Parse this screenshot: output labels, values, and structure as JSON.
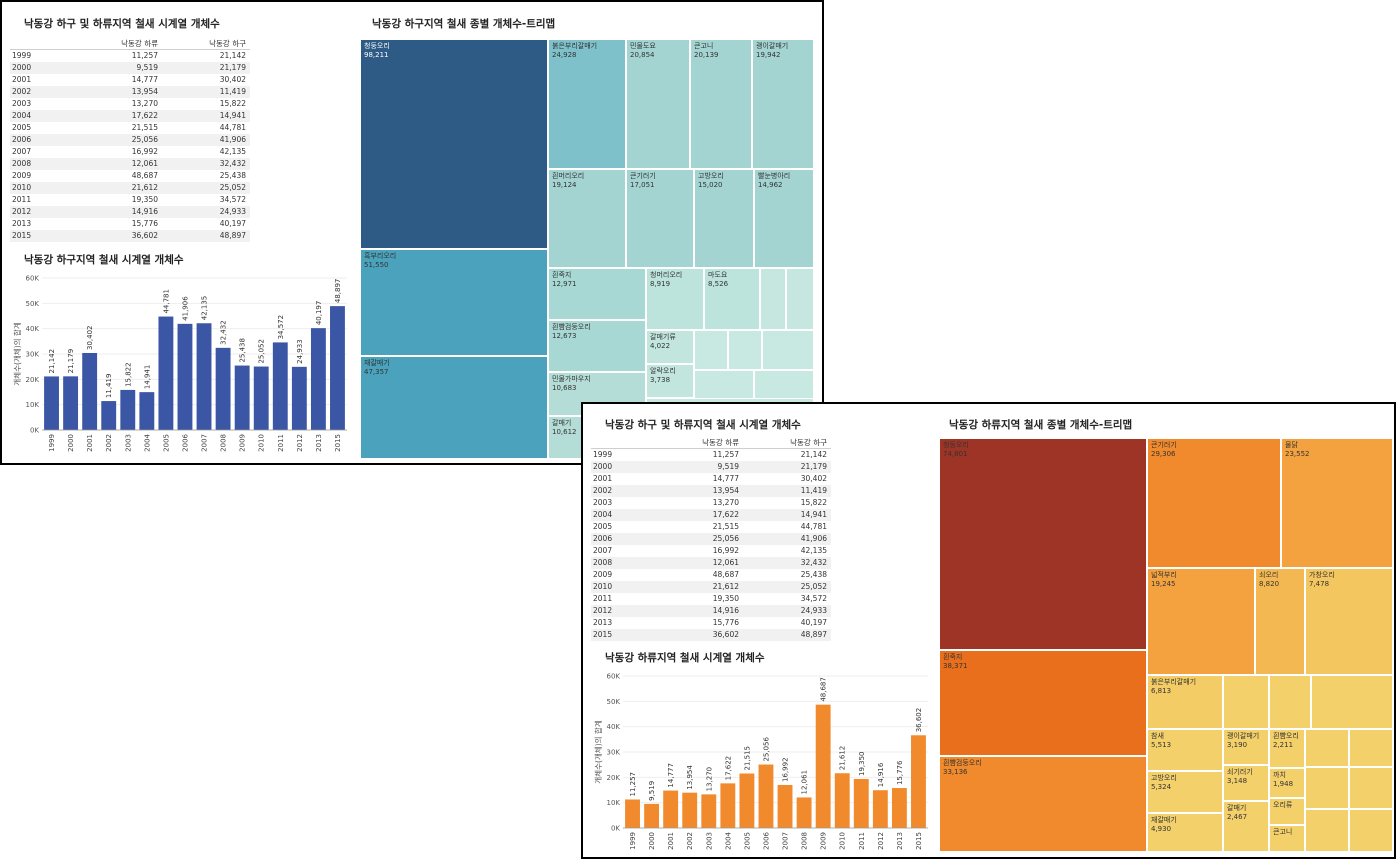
{
  "dashboards": [
    {
      "table_title": "낙동강 하구 및 하류지역 철새 시계열 개체수",
      "col_headers": [
        "낙동강 하류",
        "낙동강 하구"
      ],
      "rows": [
        {
          "year": "1999",
          "a": "11,257",
          "b": "21,142"
        },
        {
          "year": "2000",
          "a": "9,519",
          "b": "21,179"
        },
        {
          "year": "2001",
          "a": "14,777",
          "b": "30,402"
        },
        {
          "year": "2002",
          "a": "13,954",
          "b": "11,419"
        },
        {
          "year": "2003",
          "a": "13,270",
          "b": "15,822"
        },
        {
          "year": "2004",
          "a": "17,622",
          "b": "14,941"
        },
        {
          "year": "2005",
          "a": "21,515",
          "b": "44,781"
        },
        {
          "year": "2006",
          "a": "25,056",
          "b": "41,906"
        },
        {
          "year": "2007",
          "a": "16,992",
          "b": "42,135"
        },
        {
          "year": "2008",
          "a": "12,061",
          "b": "32,432"
        },
        {
          "year": "2009",
          "a": "48,687",
          "b": "25,438"
        },
        {
          "year": "2010",
          "a": "21,612",
          "b": "25,052"
        },
        {
          "year": "2011",
          "a": "19,350",
          "b": "34,572"
        },
        {
          "year": "2012",
          "a": "14,916",
          "b": "24,933"
        },
        {
          "year": "2013",
          "a": "15,776",
          "b": "40,197"
        },
        {
          "year": "2015",
          "a": "36,602",
          "b": "48,897"
        }
      ],
      "bar_title": "낙동강 하구지역 철새 시계열 개체수",
      "treemap_title": "낙동강 하구지역 철새 종별 개체수-트리맵",
      "treemap_cells": [
        {
          "name": "청둥오리",
          "value": "98,211",
          "color": "#2d5b86",
          "dark": true
        },
        {
          "name": "흑부리오리",
          "value": "51,550",
          "color": "#4aa2bc",
          "dark": false
        },
        {
          "name": "재갈매기",
          "value": "47,357",
          "color": "#4aa2bc",
          "dark": false
        },
        {
          "name": "붉은부리갈매기",
          "value": "24,928",
          "color": "#7ec1ca",
          "dark": false
        },
        {
          "name": "민물도요",
          "value": "20,854",
          "color": "#a3d4d2",
          "dark": false
        },
        {
          "name": "큰고니",
          "value": "20,139",
          "color": "#a3d4d2",
          "dark": false
        },
        {
          "name": "괭이갈매기",
          "value": "19,942",
          "color": "#a3d4d2",
          "dark": false
        },
        {
          "name": "흰머리오리",
          "value": "19,124",
          "color": "#a3d4d2",
          "dark": false
        },
        {
          "name": "큰기러기",
          "value": "17,051",
          "color": "#a3d4d2",
          "dark": false
        },
        {
          "name": "고방오리",
          "value": "15,020",
          "color": "#a3d4d2",
          "dark": false
        },
        {
          "name": "빨눈병아리",
          "value": "14,962",
          "color": "#a3d4d2",
          "dark": false
        },
        {
          "name": "흰죽지",
          "value": "12,971",
          "color": "#a8d8d3",
          "dark": false
        },
        {
          "name": "흰뺨검둥오리",
          "value": "12,673",
          "color": "#a8d8d3",
          "dark": false
        },
        {
          "name": "민물가마우지",
          "value": "10,683",
          "color": "#b5ddd7",
          "dark": false
        },
        {
          "name": "갈매기",
          "value": "10,612",
          "color": "#b5ddd7",
          "dark": false
        },
        {
          "name": "청머리오리",
          "value": "8,919",
          "color": "#bce3dc",
          "dark": false
        },
        {
          "name": "마도요",
          "value": "8,526",
          "color": "#bce3dc",
          "dark": false
        },
        {
          "name": "갈매기류",
          "value": "4,022",
          "color": "#c2e6de",
          "dark": false
        },
        {
          "name": "알락오리",
          "value": "3,738",
          "color": "#c2e6de",
          "dark": false
        },
        {
          "name": "",
          "value": "",
          "color": "#c5e7df",
          "dark": false
        },
        {
          "name": "",
          "value": "",
          "color": "#c5e7df",
          "dark": false
        },
        {
          "name": "",
          "value": "",
          "color": "#c8e9e1",
          "dark": false
        },
        {
          "name": "",
          "value": "",
          "color": "#c8e9e1",
          "dark": false
        },
        {
          "name": "",
          "value": "",
          "color": "#c8e9e1",
          "dark": false
        },
        {
          "name": "",
          "value": "",
          "color": "#c8e9e1",
          "dark": false
        },
        {
          "name": "",
          "value": "",
          "color": "#c8e9e1",
          "dark": false
        },
        {
          "name": "",
          "value": "",
          "color": "#c8e9e1",
          "dark": false
        }
      ]
    },
    {
      "table_title": "낙동강 하구 및 하류지역 철새 시계열 개체수",
      "col_headers": [
        "낙동강 하류",
        "낙동강 하구"
      ],
      "rows": [
        {
          "year": "1999",
          "a": "11,257",
          "b": "21,142"
        },
        {
          "year": "2000",
          "a": "9,519",
          "b": "21,179"
        },
        {
          "year": "2001",
          "a": "14,777",
          "b": "30,402"
        },
        {
          "year": "2002",
          "a": "13,954",
          "b": "11,419"
        },
        {
          "year": "2003",
          "a": "13,270",
          "b": "15,822"
        },
        {
          "year": "2004",
          "a": "17,622",
          "b": "14,941"
        },
        {
          "year": "2005",
          "a": "21,515",
          "b": "44,781"
        },
        {
          "year": "2006",
          "a": "25,056",
          "b": "41,906"
        },
        {
          "year": "2007",
          "a": "16,992",
          "b": "42,135"
        },
        {
          "year": "2008",
          "a": "12,061",
          "b": "32,432"
        },
        {
          "year": "2009",
          "a": "48,687",
          "b": "25,438"
        },
        {
          "year": "2010",
          "a": "21,612",
          "b": "25,052"
        },
        {
          "year": "2011",
          "a": "19,350",
          "b": "34,572"
        },
        {
          "year": "2012",
          "a": "14,916",
          "b": "24,933"
        },
        {
          "year": "2013",
          "a": "15,776",
          "b": "40,197"
        },
        {
          "year": "2015",
          "a": "36,602",
          "b": "48,897"
        }
      ],
      "bar_title": "낙동강 하류지역 철새 시계열 개체수",
      "treemap_title": "낙동강 하류지역 철새 종별 개체수-트리맵",
      "treemap_cells": [
        {
          "name": "청둥오리",
          "value": "74,801",
          "color": "#9e3426",
          "dark": false
        },
        {
          "name": "흰죽지",
          "value": "38,371",
          "color": "#ea6f1c",
          "dark": false
        },
        {
          "name": "흰뺨검둥오리",
          "value": "33,136",
          "color": "#f08a2c",
          "dark": false
        },
        {
          "name": "큰기러기",
          "value": "29,306",
          "color": "#f08a2c",
          "dark": false
        },
        {
          "name": "물닭",
          "value": "23,552",
          "color": "#f4a240",
          "dark": false
        },
        {
          "name": "넓적부리",
          "value": "19,245",
          "color": "#f4a240",
          "dark": false
        },
        {
          "name": "쇠오리",
          "value": "8,820",
          "color": "#f4b852",
          "dark": false
        },
        {
          "name": "가창오리",
          "value": "7,478",
          "color": "#f3c660",
          "dark": false
        },
        {
          "name": "붉은부리갈매기",
          "value": "6,813",
          "color": "#f3cc65",
          "dark": false
        },
        {
          "name": "참새",
          "value": "5,513",
          "color": "#f3d06a",
          "dark": false
        },
        {
          "name": "고방오리",
          "value": "5,324",
          "color": "#f3d06a",
          "dark": false
        },
        {
          "name": "재갈매기",
          "value": "4,930",
          "color": "#f3d06a",
          "dark": false
        },
        {
          "name": "괭이갈매기",
          "value": "3,190",
          "color": "#f3d06a",
          "dark": false
        },
        {
          "name": "쇠기러기",
          "value": "3,148",
          "color": "#f3d06a",
          "dark": false
        },
        {
          "name": "갈매기",
          "value": "2,467",
          "color": "#f3d06a",
          "dark": false
        },
        {
          "name": "흰뺨오리",
          "value": "2,211",
          "color": "#f3d06a",
          "dark": false
        },
        {
          "name": "까치",
          "value": "1,948",
          "color": "#f3d06a",
          "dark": false
        },
        {
          "name": "오리류",
          "value": "",
          "color": "#f3d06a",
          "dark": false
        },
        {
          "name": "큰고니",
          "value": "",
          "color": "#f3d06a",
          "dark": false
        },
        {
          "name": "",
          "value": "",
          "color": "#f3d06a",
          "dark": false
        },
        {
          "name": "",
          "value": "",
          "color": "#f3d06a",
          "dark": false
        },
        {
          "name": "",
          "value": "",
          "color": "#f3d06a",
          "dark": false
        },
        {
          "name": "",
          "value": "",
          "color": "#f3d06a",
          "dark": false
        },
        {
          "name": "",
          "value": "",
          "color": "#f3d06a",
          "dark": false
        },
        {
          "name": "",
          "value": "",
          "color": "#f3d06a",
          "dark": false
        },
        {
          "name": "",
          "value": "",
          "color": "#f3d06a",
          "dark": false
        },
        {
          "name": "",
          "value": "",
          "color": "#f3d06a",
          "dark": false
        },
        {
          "name": "",
          "value": "",
          "color": "#f3d06a",
          "dark": false
        }
      ]
    }
  ],
  "chart_data": [
    {
      "type": "bar",
      "title": "낙동강 하구지역 철새 시계열 개체수",
      "xlabel": "",
      "ylabel": "개체수(개체)의 합계",
      "ylim": [
        0,
        60000
      ],
      "yticks": [
        "0K",
        "10K",
        "20K",
        "30K",
        "40K",
        "50K",
        "60K"
      ],
      "color": "#3a56a4",
      "categories": [
        "1999",
        "2000",
        "2001",
        "2002",
        "2003",
        "2004",
        "2005",
        "2006",
        "2007",
        "2008",
        "2009",
        "2010",
        "2011",
        "2012",
        "2013",
        "2015"
      ],
      "values": [
        21142,
        21179,
        30402,
        11419,
        15822,
        14941,
        44781,
        41906,
        42135,
        32432,
        25438,
        25052,
        34572,
        24933,
        40197,
        48897
      ],
      "labels": [
        "21,142",
        "21,179",
        "30,402",
        "11,419",
        "15,822",
        "14,941",
        "44,781",
        "41,906",
        "42,135",
        "32,432",
        "25,438",
        "25,052",
        "34,572",
        "24,933",
        "40,197",
        "48,897"
      ]
    },
    {
      "type": "bar",
      "title": "낙동강 하류지역 철새 시계열 개체수",
      "xlabel": "",
      "ylabel": "개체수(개체)의 합계",
      "ylim": [
        0,
        60000
      ],
      "yticks": [
        "0K",
        "10K",
        "20K",
        "30K",
        "40K",
        "50K",
        "60K"
      ],
      "color": "#f08a2c",
      "categories": [
        "1999",
        "2000",
        "2001",
        "2002",
        "2003",
        "2004",
        "2005",
        "2006",
        "2007",
        "2008",
        "2009",
        "2010",
        "2011",
        "2012",
        "2013",
        "2015"
      ],
      "values": [
        11257,
        9519,
        14777,
        13954,
        13270,
        17622,
        21515,
        25056,
        16992,
        12061,
        48687,
        21612,
        19350,
        14916,
        15776,
        36602
      ],
      "labels": [
        "11,257",
        "9,519",
        "14,777",
        "13,954",
        "13,270",
        "17,622",
        "21,515",
        "25,056",
        "16,992",
        "12,061",
        "48,687",
        "21,612",
        "19,350",
        "14,916",
        "15,776",
        "36,602"
      ]
    }
  ]
}
